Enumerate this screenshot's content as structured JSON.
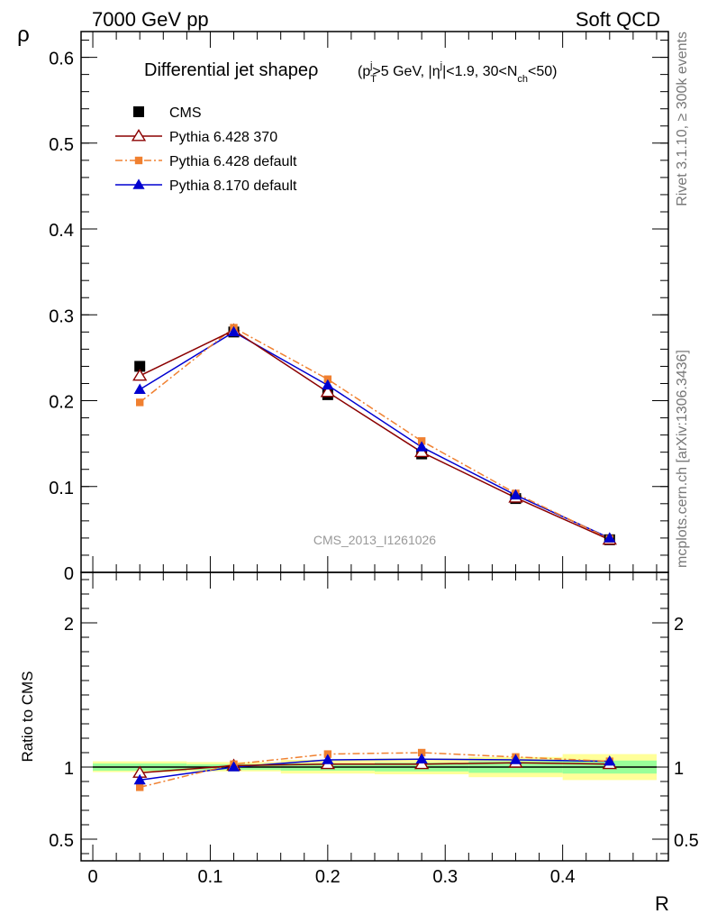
{
  "header": {
    "left": "7000 GeV pp",
    "right": "Soft QCD"
  },
  "side": {
    "top": "Rivet 3.1.10, ≥ 300k events",
    "bottom": "mcplots.cern.ch [arXiv:1306.3436]"
  },
  "watermark": "CMS_2013_I1261026",
  "title": {
    "main": "Differential jet shapeρ",
    "cond": "(p_T^j>5 GeV, |η^j|<1.9, 30<N_ch<50)"
  },
  "colors": {
    "cms": "#000000",
    "py6_370": "#8b0000",
    "py6_default": "#f08030",
    "py8": "#0000d0",
    "band_yellow": "#ffff99",
    "band_green": "#99ff99"
  },
  "chart_data": [
    {
      "type": "line",
      "panel": "main",
      "ylabel": "ρ",
      "xlim": [
        -0.01,
        0.49
      ],
      "ylim": [
        0,
        0.63
      ],
      "yticks": [
        0,
        0.1,
        0.2,
        0.3,
        0.4,
        0.5,
        0.6
      ],
      "ytick_labels": [
        "0",
        "0.1",
        "0.2",
        "0.3",
        "0.4",
        "0.5",
        "0.6"
      ],
      "legend_position": "top-left",
      "x": [
        0.04,
        0.12,
        0.2,
        0.28,
        0.36,
        0.44
      ],
      "series": [
        {
          "name": "CMS",
          "marker": "square",
          "values": [
            0.24,
            0.28,
            0.207,
            0.138,
            0.086,
            0.038
          ]
        },
        {
          "name": "Pythia 6.428 370",
          "marker": "open-triangle",
          "values": [
            0.229,
            0.282,
            0.21,
            0.14,
            0.087,
            0.038
          ]
        },
        {
          "name": "Pythia 6.428 default",
          "marker": "small-square",
          "values": [
            0.198,
            0.285,
            0.225,
            0.153,
            0.092,
            0.039
          ]
        },
        {
          "name": "Pythia 8.170 default",
          "marker": "filled-triangle",
          "values": [
            0.213,
            0.28,
            0.218,
            0.146,
            0.09,
            0.04
          ]
        }
      ]
    },
    {
      "type": "line",
      "panel": "ratio",
      "ylabel": "Ratio to CMS",
      "xlabel": "R",
      "xlim": [
        -0.01,
        0.49
      ],
      "ylim": [
        0.35,
        2.35
      ],
      "xticks": [
        0,
        0.1,
        0.2,
        0.3,
        0.4
      ],
      "xtick_labels": [
        "0",
        "0.1",
        "0.2",
        "0.3",
        "0.4"
      ],
      "yticks": [
        0.5,
        1,
        2
      ],
      "ytick_labels": [
        "0.5",
        "1",
        "2"
      ],
      "x": [
        0.04,
        0.12,
        0.2,
        0.28,
        0.36,
        0.44
      ],
      "bins": [
        [
          0.0,
          0.08
        ],
        [
          0.08,
          0.16
        ],
        [
          0.16,
          0.24
        ],
        [
          0.24,
          0.32
        ],
        [
          0.32,
          0.4
        ],
        [
          0.4,
          0.48
        ]
      ],
      "band_stat": [
        [
          0.975,
          1.025
        ],
        [
          0.98,
          1.02
        ],
        [
          0.975,
          1.025
        ],
        [
          0.97,
          1.03
        ],
        [
          0.96,
          1.04
        ],
        [
          0.955,
          1.045
        ]
      ],
      "band_total": [
        [
          0.965,
          1.04
        ],
        [
          0.97,
          1.035
        ],
        [
          0.955,
          1.05
        ],
        [
          0.95,
          1.06
        ],
        [
          0.93,
          1.07
        ],
        [
          0.91,
          1.09
        ]
      ],
      "series": [
        {
          "name": "Pythia 6.428 370",
          "values": [
            0.96,
            1.01,
            1.02,
            1.02,
            1.03,
            1.02
          ]
        },
        {
          "name": "Pythia 6.428 default",
          "values": [
            0.86,
            1.02,
            1.09,
            1.1,
            1.07,
            1.04
          ]
        },
        {
          "name": "Pythia 8.170 default",
          "values": [
            0.91,
            1.0,
            1.05,
            1.055,
            1.05,
            1.04
          ]
        }
      ]
    }
  ]
}
